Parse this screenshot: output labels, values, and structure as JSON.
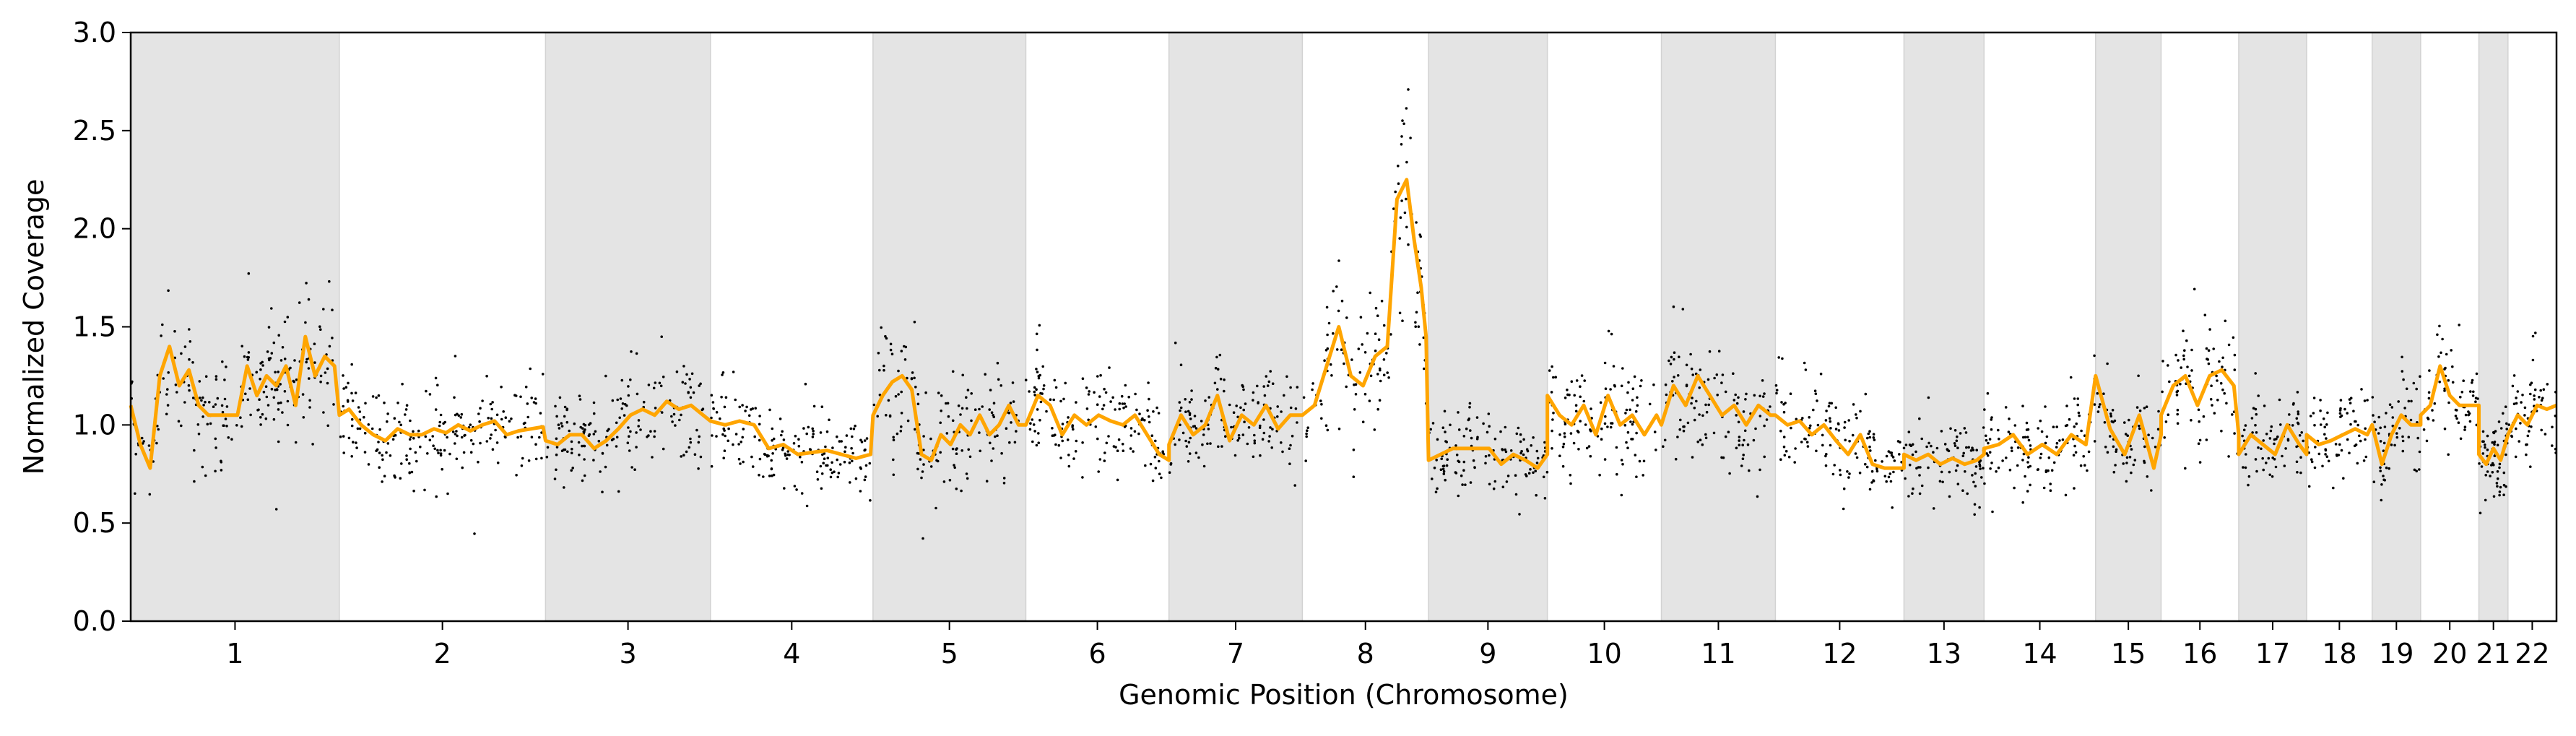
{
  "chart_data": {
    "type": "scatter",
    "title": "",
    "xlabel": "Genomic Position (Chromosome)",
    "ylabel": "Normalized Coverage",
    "ylim": [
      0,
      3.0
    ],
    "yticks": [
      0.0,
      0.5,
      1.0,
      1.5,
      2.0,
      2.5,
      3.0
    ],
    "ytick_labels": [
      "0.0",
      "0.5",
      "1.0",
      "1.5",
      "2.0",
      "2.5",
      "3.0"
    ],
    "grid": false,
    "legend": "none",
    "colors": {
      "points": "#000000",
      "segment_line": "#FFA500",
      "band_shade": "#E4E4E4"
    },
    "chromosomes": [
      {
        "label": "1",
        "start": 0.0,
        "end": 0.086,
        "shaded": true,
        "level": 1.12
      },
      {
        "label": "2",
        "start": 0.086,
        "end": 0.171,
        "shaded": false,
        "level": 0.98
      },
      {
        "label": "3",
        "start": 0.171,
        "end": 0.239,
        "shaded": true,
        "level": 0.98
      },
      {
        "label": "4",
        "start": 0.239,
        "end": 0.306,
        "shaded": false,
        "level": 0.92
      },
      {
        "label": "5",
        "start": 0.306,
        "end": 0.369,
        "shaded": true,
        "level": 1.0
      },
      {
        "label": "6",
        "start": 0.369,
        "end": 0.428,
        "shaded": false,
        "level": 1.02
      },
      {
        "label": "7",
        "start": 0.428,
        "end": 0.483,
        "shaded": true,
        "level": 1.02
      },
      {
        "label": "8",
        "start": 0.483,
        "end": 0.535,
        "shaded": false,
        "level": 1.25
      },
      {
        "label": "9",
        "start": 0.535,
        "end": 0.584,
        "shaded": true,
        "level": 0.85
      },
      {
        "label": "10",
        "start": 0.584,
        "end": 0.631,
        "shaded": false,
        "level": 1.05
      },
      {
        "label": "11",
        "start": 0.631,
        "end": 0.678,
        "shaded": true,
        "level": 1.08
      },
      {
        "label": "12",
        "start": 0.678,
        "end": 0.731,
        "shaded": false,
        "level": 0.96
      },
      {
        "label": "13",
        "start": 0.731,
        "end": 0.764,
        "shaded": true,
        "level": 0.82
      },
      {
        "label": "14",
        "start": 0.764,
        "end": 0.81,
        "shaded": false,
        "level": 0.88
      },
      {
        "label": "15",
        "start": 0.81,
        "end": 0.837,
        "shaded": true,
        "level": 0.98
      },
      {
        "label": "16",
        "start": 0.837,
        "end": 0.869,
        "shaded": false,
        "level": 1.05
      },
      {
        "label": "17",
        "start": 0.869,
        "end": 0.897,
        "shaded": true,
        "level": 0.92
      },
      {
        "label": "18",
        "start": 0.897,
        "end": 0.924,
        "shaded": false,
        "level": 0.95
      },
      {
        "label": "19",
        "start": 0.924,
        "end": 0.944,
        "shaded": true,
        "level": 0.98
      },
      {
        "label": "20",
        "start": 0.944,
        "end": 0.968,
        "shaded": false,
        "level": 1.08
      },
      {
        "label": "21",
        "start": 0.968,
        "end": 0.98,
        "shaded": true,
        "level": 0.85
      },
      {
        "label": "22",
        "start": 0.98,
        "end": 1.0,
        "shaded": false,
        "level": 1.02
      }
    ],
    "segments": [
      {
        "x": [
          0.0,
          0.004,
          0.008,
          0.012,
          0.016,
          0.02,
          0.024,
          0.028,
          0.032,
          0.036,
          0.04,
          0.044,
          0.048,
          0.052,
          0.056,
          0.06,
          0.064,
          0.068,
          0.072,
          0.076,
          0.08,
          0.084
        ],
        "y": [
          1.1,
          0.9,
          0.78,
          1.25,
          1.4,
          1.2,
          1.28,
          1.1,
          1.05,
          1.05,
          1.05,
          1.05,
          1.3,
          1.15,
          1.25,
          1.2,
          1.3,
          1.1,
          1.45,
          1.25,
          1.35,
          1.3
        ]
      },
      {
        "x": [
          0.086,
          0.09,
          0.095,
          0.1,
          0.105,
          0.11,
          0.115,
          0.12,
          0.125,
          0.13,
          0.135,
          0.14,
          0.145,
          0.15,
          0.155,
          0.16,
          0.165,
          0.17
        ],
        "y": [
          1.05,
          1.08,
          1.0,
          0.95,
          0.92,
          0.98,
          0.95,
          0.95,
          0.98,
          0.96,
          1.0,
          0.97,
          1.0,
          1.02,
          0.95,
          0.97,
          0.98,
          0.99
        ]
      },
      {
        "x": [
          0.171,
          0.176,
          0.181,
          0.186,
          0.191,
          0.196,
          0.201,
          0.206,
          0.211,
          0.216,
          0.221,
          0.226,
          0.231,
          0.236
        ],
        "y": [
          0.92,
          0.9,
          0.95,
          0.95,
          0.88,
          0.92,
          0.98,
          1.05,
          1.08,
          1.05,
          1.12,
          1.08,
          1.1,
          1.05
        ]
      },
      {
        "x": [
          0.239,
          0.245,
          0.251,
          0.257,
          0.263,
          0.269,
          0.275,
          0.281,
          0.287,
          0.293,
          0.299,
          0.305
        ],
        "y": [
          1.02,
          1.0,
          1.02,
          1.0,
          0.88,
          0.9,
          0.85,
          0.86,
          0.87,
          0.85,
          0.83,
          0.85
        ]
      },
      {
        "x": [
          0.306,
          0.31,
          0.314,
          0.318,
          0.322,
          0.326,
          0.33,
          0.334,
          0.338,
          0.342,
          0.346,
          0.35,
          0.354,
          0.358,
          0.362,
          0.366
        ],
        "y": [
          1.05,
          1.15,
          1.22,
          1.25,
          1.18,
          0.85,
          0.82,
          0.95,
          0.9,
          1.0,
          0.95,
          1.05,
          0.95,
          1.0,
          1.1,
          1.0
        ]
      },
      {
        "x": [
          0.369,
          0.374,
          0.379,
          0.384,
          0.389,
          0.394,
          0.399,
          0.404,
          0.409,
          0.414,
          0.419,
          0.424,
          0.428
        ],
        "y": [
          1.0,
          1.15,
          1.1,
          0.95,
          1.05,
          1.0,
          1.05,
          1.02,
          1.0,
          1.05,
          0.95,
          0.85,
          0.82
        ]
      },
      {
        "x": [
          0.428,
          0.433,
          0.438,
          0.443,
          0.448,
          0.453,
          0.458,
          0.463,
          0.468,
          0.473,
          0.478,
          0.483
        ],
        "y": [
          0.9,
          1.05,
          0.95,
          1.0,
          1.15,
          0.92,
          1.05,
          1.0,
          1.1,
          0.98,
          1.05,
          1.05
        ]
      },
      {
        "x": [
          0.483,
          0.488,
          0.493,
          0.498,
          0.503,
          0.508,
          0.513,
          0.518,
          0.522,
          0.526,
          0.529,
          0.532,
          0.534
        ],
        "y": [
          1.05,
          1.1,
          1.3,
          1.5,
          1.25,
          1.2,
          1.35,
          1.4,
          2.15,
          2.25,
          1.95,
          1.7,
          1.45
        ]
      },
      {
        "x": [
          0.535,
          0.54,
          0.545,
          0.55,
          0.555,
          0.56,
          0.565,
          0.57,
          0.575,
          0.58,
          0.584
        ],
        "y": [
          0.82,
          0.85,
          0.88,
          0.88,
          0.88,
          0.88,
          0.8,
          0.85,
          0.82,
          0.78,
          0.85
        ]
      },
      {
        "x": [
          0.584,
          0.589,
          0.594,
          0.599,
          0.604,
          0.609,
          0.614,
          0.619,
          0.624,
          0.629
        ],
        "y": [
          1.15,
          1.05,
          1.0,
          1.1,
          0.95,
          1.15,
          1.0,
          1.05,
          0.95,
          1.05
        ]
      },
      {
        "x": [
          0.631,
          0.636,
          0.641,
          0.646,
          0.651,
          0.656,
          0.661,
          0.666,
          0.671,
          0.676
        ],
        "y": [
          1.0,
          1.2,
          1.1,
          1.25,
          1.15,
          1.05,
          1.1,
          1.0,
          1.1,
          1.05
        ]
      },
      {
        "x": [
          0.678,
          0.683,
          0.688,
          0.693,
          0.698,
          0.703,
          0.708,
          0.713,
          0.718,
          0.723,
          0.728,
          0.731
        ],
        "y": [
          1.05,
          1.0,
          1.02,
          0.95,
          1.0,
          0.92,
          0.85,
          0.95,
          0.8,
          0.78,
          0.78,
          0.78
        ]
      },
      {
        "x": [
          0.731,
          0.736,
          0.741,
          0.746,
          0.751,
          0.756,
          0.761,
          0.764
        ],
        "y": [
          0.85,
          0.82,
          0.85,
          0.8,
          0.83,
          0.8,
          0.82,
          0.85
        ]
      },
      {
        "x": [
          0.764,
          0.77,
          0.776,
          0.782,
          0.788,
          0.794,
          0.8,
          0.806,
          0.81
        ],
        "y": [
          0.88,
          0.9,
          0.95,
          0.85,
          0.9,
          0.85,
          0.95,
          0.9,
          1.25
        ]
      },
      {
        "x": [
          0.81,
          0.816,
          0.822,
          0.828,
          0.834,
          0.837
        ],
        "y": [
          1.25,
          0.98,
          0.85,
          1.05,
          0.78,
          0.95
        ]
      },
      {
        "x": [
          0.837,
          0.842,
          0.847,
          0.852,
          0.857,
          0.862,
          0.867,
          0.869
        ],
        "y": [
          1.05,
          1.2,
          1.25,
          1.1,
          1.25,
          1.28,
          1.2,
          0.95
        ]
      },
      {
        "x": [
          0.869,
          0.874,
          0.879,
          0.884,
          0.889,
          0.894,
          0.897
        ],
        "y": [
          0.85,
          0.95,
          0.9,
          0.85,
          1.0,
          0.9,
          0.85
        ]
      },
      {
        "x": [
          0.897,
          0.902,
          0.907,
          0.912,
          0.917,
          0.922,
          0.924
        ],
        "y": [
          0.95,
          0.9,
          0.92,
          0.95,
          0.98,
          0.95,
          1.0
        ]
      },
      {
        "x": [
          0.924,
          0.928,
          0.932,
          0.936,
          0.94,
          0.944
        ],
        "y": [
          1.0,
          0.8,
          0.95,
          1.05,
          1.0,
          1.0
        ]
      },
      {
        "x": [
          0.944,
          0.948,
          0.952,
          0.956,
          0.96,
          0.964,
          0.968
        ],
        "y": [
          1.05,
          1.1,
          1.3,
          1.15,
          1.1,
          1.1,
          1.1
        ]
      },
      {
        "x": [
          0.968,
          0.971,
          0.974,
          0.977,
          0.98
        ],
        "y": [
          0.85,
          0.8,
          0.88,
          0.82,
          0.95
        ]
      },
      {
        "x": [
          0.98,
          0.984,
          0.988,
          0.992,
          0.996,
          1.0
        ],
        "y": [
          0.95,
          1.05,
          1.0,
          1.1,
          1.08,
          1.1
        ]
      }
    ]
  }
}
